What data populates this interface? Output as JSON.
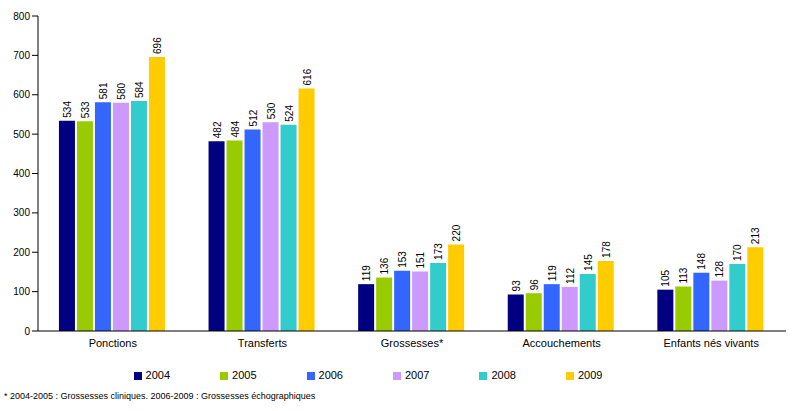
{
  "chart_data": {
    "type": "bar",
    "categories": [
      "Ponctions",
      "Transferts",
      "Grossesses*",
      "Accouchements",
      "Enfants nés vivants"
    ],
    "series": [
      {
        "name": "2004",
        "color": "#000080",
        "values": [
          534,
          482,
          119,
          93,
          105
        ]
      },
      {
        "name": "2005",
        "color": "#99cc00",
        "values": [
          533,
          484,
          136,
          96,
          113
        ]
      },
      {
        "name": "2006",
        "color": "#3366ff",
        "values": [
          581,
          512,
          153,
          119,
          148
        ]
      },
      {
        "name": "2007",
        "color": "#cc99ff",
        "values": [
          580,
          530,
          151,
          112,
          128
        ]
      },
      {
        "name": "2008",
        "color": "#33cccc",
        "values": [
          584,
          524,
          173,
          145,
          170
        ]
      },
      {
        "name": "2009",
        "color": "#ffcc00",
        "values": [
          696,
          616,
          220,
          178,
          213
        ]
      }
    ],
    "ylim": [
      0,
      800
    ],
    "yticks": [
      0,
      100,
      200,
      300,
      400,
      500,
      600,
      700,
      800
    ],
    "grid": false,
    "legend": "bottom",
    "data_labels": true,
    "annotations": [
      "* 2004-2005 : Grossesses cliniques. 2006-2009 : Grossesses échographiques"
    ]
  }
}
